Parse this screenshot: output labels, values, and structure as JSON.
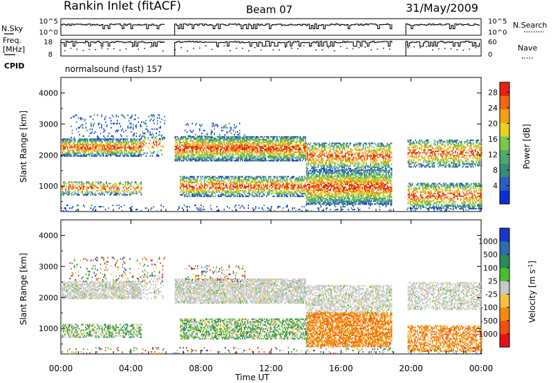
{
  "header": {
    "station": "Rankin Inlet (fitACF)",
    "beam": "Beam 07",
    "date": "31/May/2009"
  },
  "params": {
    "nsky_label": "N.Sky",
    "nsky_ticks": [
      "10^5",
      "10^0"
    ],
    "nsearch_label": "N.Search",
    "nsearch_ticks": [
      "10^5",
      "10^0"
    ],
    "freq_label": [
      "Freq.",
      "[MHz]"
    ],
    "freq_ticks": [
      "18",
      "8"
    ],
    "nave_label": "Nave",
    "nave_ticks": [
      "60",
      "0"
    ],
    "cpid_label": "CPID",
    "cpid_text": "normalsound (fast) 157"
  },
  "colors": {
    "power_scale": [
      "#0a2fd6",
      "#2b5cc4",
      "#3a8c7a",
      "#4fa86a",
      "#7dc84a",
      "#e8d21e",
      "#f5a012",
      "#ef6a10",
      "#e82010"
    ],
    "velocity_scale": [
      "#e81010",
      "#ef5010",
      "#f28a10",
      "#f5c040",
      "#c8c8c8",
      "#44c030",
      "#2e8a5a",
      "#2a6fb0",
      "#1838c8"
    ]
  },
  "chart_data": [
    {
      "type": "heatmap",
      "title": "Power",
      "quantity": "Power",
      "xlabel": "Time UT",
      "ylabel": "Slant Range [km]",
      "xlim_hours": [
        0,
        24
      ],
      "x_ticks": [
        "00:00",
        "04:00",
        "08:00",
        "12:00",
        "16:00",
        "20:00",
        "00:00"
      ],
      "ylim": [
        180,
        4500
      ],
      "y_ticks": [
        1000,
        2000,
        3000,
        4000
      ],
      "colorbar_label": "Power [dB]",
      "colorbar_ticks": [
        "4",
        "8",
        "12",
        "16",
        "20",
        "24",
        "28"
      ],
      "colorbar_range": [
        0,
        30
      ],
      "grid": false
    },
    {
      "type": "heatmap",
      "title": "Velocity",
      "quantity": "Velocity",
      "xlabel": "Time UT",
      "ylabel": "Slant Range [km]",
      "xlim_hours": [
        0,
        24
      ],
      "x_ticks": [
        "00:00",
        "04:00",
        "08:00",
        "12:00",
        "16:00",
        "20:00",
        "00:00"
      ],
      "ylim": [
        180,
        4500
      ],
      "y_ticks": [
        1000,
        2000,
        3000,
        4000
      ],
      "colorbar_label": "Velocity [m s-1]",
      "colorbar_ticks": [
        "1000",
        "500",
        "100",
        "25",
        "-25",
        "-100",
        "-500",
        "-1000"
      ],
      "grid": false
    }
  ],
  "scatter_bands": {
    "description_free": true,
    "bands": [
      {
        "t0": 0.0,
        "t1": 4.6,
        "r0": 1950,
        "r1": 2500,
        "dens": 0.7
      },
      {
        "t0": 4.6,
        "t1": 5.8,
        "r0": 1950,
        "r1": 2700,
        "dens": 0.25
      },
      {
        "t0": 6.5,
        "t1": 14.0,
        "r0": 1800,
        "r1": 2600,
        "dens": 0.75
      },
      {
        "t0": 14.0,
        "t1": 18.9,
        "r0": 1500,
        "r1": 2400,
        "dens": 0.55
      },
      {
        "t0": 19.8,
        "t1": 24.0,
        "r0": 1600,
        "r1": 2500,
        "dens": 0.5
      },
      {
        "t0": 0.0,
        "t1": 4.6,
        "r0": 700,
        "r1": 1150,
        "dens": 0.45
      },
      {
        "t0": 6.8,
        "t1": 14.0,
        "r0": 650,
        "r1": 1300,
        "dens": 0.6
      },
      {
        "t0": 14.0,
        "t1": 18.9,
        "r0": 400,
        "r1": 1500,
        "dens": 0.75
      },
      {
        "t0": 19.8,
        "t1": 24.0,
        "r0": 250,
        "r1": 1100,
        "dens": 0.55
      },
      {
        "t0": 0.0,
        "t1": 24.0,
        "r0": 180,
        "r1": 400,
        "dens": 0.12
      },
      {
        "t0": 0.5,
        "t1": 6.0,
        "r0": 2500,
        "r1": 3300,
        "dens": 0.12
      },
      {
        "t0": 7.0,
        "t1": 10.5,
        "r0": 2500,
        "r1": 3000,
        "dens": 0.15
      }
    ]
  }
}
